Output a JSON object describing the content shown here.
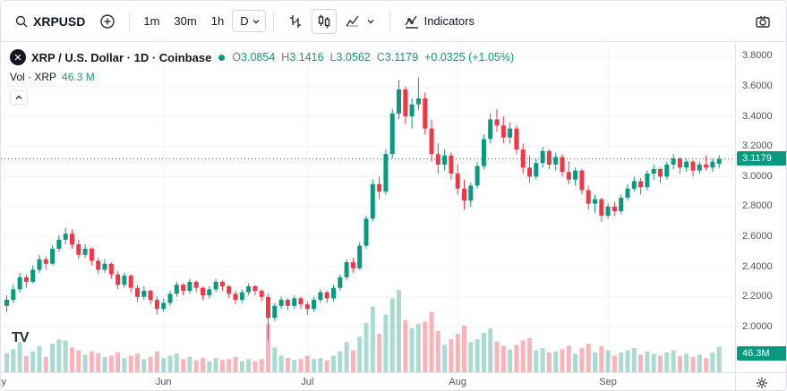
{
  "toolbar": {
    "symbol": "XRPUSD",
    "intervals": {
      "m1": "1m",
      "m30": "30m",
      "h1": "1h",
      "d1": "D"
    },
    "selected_interval": "D",
    "indicators_label": "Indicators",
    "icons": [
      "search",
      "add-circle",
      "chevron-down",
      "bars-style",
      "candles-style",
      "area-style",
      "indicators",
      "camera"
    ]
  },
  "legend": {
    "pair_title": "XRP / U.S. Dollar · 1D · Coinbase",
    "o_label": "O",
    "o_value": "3.0854",
    "h_label": "H",
    "h_value": "3.1416",
    "l_label": "L",
    "l_value": "3.0562",
    "c_label": "C",
    "c_value": "3.1179",
    "change": "+0.0325 (+1.05%)",
    "vol_label": "Vol · XRP",
    "vol_value": "46.3 M"
  },
  "axis": {
    "price_badge": "3.1179",
    "volume_badge": "46.3M"
  },
  "branding": {
    "logo_text": "TV"
  },
  "chart_data": {
    "type": "candlestick",
    "symbol": "XRPUSD",
    "timeframe": "1D",
    "exchange": "Coinbase",
    "title": "XRP / U.S. Dollar · 1D · Coinbase",
    "last_price": 3.1179,
    "last_volume_m": 46.3,
    "y_ticks": [
      3.8,
      3.6,
      3.4,
      3.2,
      3.0,
      2.8,
      2.6,
      2.4,
      2.2,
      2.0
    ],
    "y_range": [
      1.698,
      3.895
    ],
    "grid": true,
    "volume_scale_max": 155,
    "x_labels": [
      {
        "label": "May",
        "i": -1.5
      },
      {
        "label": "Jun",
        "i": 24
      },
      {
        "label": "Jul",
        "i": 46
      },
      {
        "label": "Aug",
        "i": 69
      },
      {
        "label": "Sep",
        "i": 92
      }
    ],
    "colors": {
      "up": "#089981",
      "down": "#f23645",
      "vol_up": "rgba(8,153,129,0.35)",
      "vol_down": "rgba(242,54,69,0.38)",
      "grid": "#f0f3fa",
      "last_line": "#089981"
    },
    "candles": [
      [
        2.14,
        2.21,
        2.1,
        2.18
      ],
      [
        2.18,
        2.28,
        2.16,
        2.25
      ],
      [
        2.25,
        2.36,
        2.23,
        2.33
      ],
      [
        2.33,
        2.35,
        2.26,
        2.3
      ],
      [
        2.3,
        2.41,
        2.29,
        2.38
      ],
      [
        2.38,
        2.48,
        2.36,
        2.45
      ],
      [
        2.45,
        2.47,
        2.38,
        2.42
      ],
      [
        2.42,
        2.54,
        2.41,
        2.52
      ],
      [
        2.52,
        2.61,
        2.5,
        2.58
      ],
      [
        2.58,
        2.66,
        2.55,
        2.62
      ],
      [
        2.62,
        2.65,
        2.52,
        2.55
      ],
      [
        2.55,
        2.58,
        2.45,
        2.48
      ],
      [
        2.48,
        2.55,
        2.46,
        2.52
      ],
      [
        2.52,
        2.53,
        2.41,
        2.44
      ],
      [
        2.44,
        2.46,
        2.35,
        2.38
      ],
      [
        2.38,
        2.45,
        2.36,
        2.42
      ],
      [
        2.42,
        2.43,
        2.32,
        2.35
      ],
      [
        2.35,
        2.37,
        2.25,
        2.28
      ],
      [
        2.28,
        2.36,
        2.26,
        2.34
      ],
      [
        2.34,
        2.35,
        2.23,
        2.26
      ],
      [
        2.26,
        2.28,
        2.17,
        2.2
      ],
      [
        2.2,
        2.27,
        2.18,
        2.24
      ],
      [
        2.24,
        2.25,
        2.15,
        2.18
      ],
      [
        2.18,
        2.2,
        2.08,
        2.12
      ],
      [
        2.12,
        2.19,
        2.1,
        2.16
      ],
      [
        2.16,
        2.24,
        2.14,
        2.22
      ],
      [
        2.22,
        2.3,
        2.2,
        2.28
      ],
      [
        2.28,
        2.29,
        2.21,
        2.24
      ],
      [
        2.24,
        2.32,
        2.22,
        2.3
      ],
      [
        2.3,
        2.31,
        2.23,
        2.26
      ],
      [
        2.26,
        2.27,
        2.18,
        2.21
      ],
      [
        2.21,
        2.27,
        2.19,
        2.25
      ],
      [
        2.25,
        2.32,
        2.23,
        2.3
      ],
      [
        2.3,
        2.31,
        2.24,
        2.27
      ],
      [
        2.27,
        2.28,
        2.19,
        2.22
      ],
      [
        2.22,
        2.24,
        2.15,
        2.18
      ],
      [
        2.18,
        2.25,
        2.16,
        2.23
      ],
      [
        2.23,
        2.29,
        2.21,
        2.27
      ],
      [
        2.27,
        2.28,
        2.21,
        2.24
      ],
      [
        2.24,
        2.25,
        2.17,
        2.2
      ],
      [
        2.2,
        2.22,
        1.91,
        2.06
      ],
      [
        2.06,
        2.16,
        2.04,
        2.14
      ],
      [
        2.14,
        2.2,
        2.12,
        2.18
      ],
      [
        2.18,
        2.19,
        2.11,
        2.14
      ],
      [
        2.14,
        2.21,
        2.12,
        2.19
      ],
      [
        2.19,
        2.2,
        2.12,
        2.15
      ],
      [
        2.15,
        2.17,
        2.08,
        2.12
      ],
      [
        2.12,
        2.2,
        2.1,
        2.18
      ],
      [
        2.18,
        2.25,
        2.16,
        2.23
      ],
      [
        2.23,
        2.24,
        2.16,
        2.19
      ],
      [
        2.19,
        2.28,
        2.17,
        2.26
      ],
      [
        2.26,
        2.35,
        2.24,
        2.33
      ],
      [
        2.33,
        2.45,
        2.31,
        2.43
      ],
      [
        2.43,
        2.46,
        2.36,
        2.39
      ],
      [
        2.39,
        2.56,
        2.38,
        2.54
      ],
      [
        2.54,
        2.74,
        2.52,
        2.72
      ],
      [
        2.72,
        2.98,
        2.7,
        2.95
      ],
      [
        2.95,
        3.0,
        2.85,
        2.9
      ],
      [
        2.9,
        3.18,
        2.88,
        3.15
      ],
      [
        3.15,
        3.45,
        3.12,
        3.42
      ],
      [
        3.42,
        3.64,
        3.38,
        3.58
      ],
      [
        3.58,
        3.6,
        3.35,
        3.4
      ],
      [
        3.4,
        3.52,
        3.32,
        3.48
      ],
      [
        3.48,
        3.66,
        3.44,
        3.52
      ],
      [
        3.52,
        3.56,
        3.28,
        3.32
      ],
      [
        3.32,
        3.38,
        3.1,
        3.15
      ],
      [
        3.15,
        3.22,
        3.02,
        3.08
      ],
      [
        3.08,
        3.18,
        3.04,
        3.14
      ],
      [
        3.14,
        3.16,
        2.98,
        3.02
      ],
      [
        3.02,
        3.08,
        2.88,
        2.92
      ],
      [
        2.92,
        2.98,
        2.78,
        2.84
      ],
      [
        2.84,
        2.96,
        2.8,
        2.94
      ],
      [
        2.94,
        3.1,
        2.92,
        3.07
      ],
      [
        3.07,
        3.28,
        3.05,
        3.25
      ],
      [
        3.25,
        3.42,
        3.22,
        3.38
      ],
      [
        3.38,
        3.45,
        3.3,
        3.34
      ],
      [
        3.34,
        3.4,
        3.22,
        3.26
      ],
      [
        3.26,
        3.36,
        3.22,
        3.32
      ],
      [
        3.32,
        3.34,
        3.15,
        3.18
      ],
      [
        3.18,
        3.22,
        3.02,
        3.06
      ],
      [
        3.06,
        3.14,
        2.96,
        3.0
      ],
      [
        3.0,
        3.12,
        2.98,
        3.09
      ],
      [
        3.09,
        3.2,
        3.06,
        3.17
      ],
      [
        3.17,
        3.18,
        3.05,
        3.08
      ],
      [
        3.08,
        3.16,
        3.04,
        3.13
      ],
      [
        3.13,
        3.15,
        3.0,
        3.03
      ],
      [
        3.03,
        3.1,
        2.95,
        2.98
      ],
      [
        2.98,
        3.06,
        2.94,
        3.04
      ],
      [
        3.04,
        3.05,
        2.88,
        2.91
      ],
      [
        2.91,
        2.94,
        2.78,
        2.82
      ],
      [
        2.82,
        2.88,
        2.76,
        2.85
      ],
      [
        2.85,
        2.86,
        2.7,
        2.74
      ],
      [
        2.74,
        2.82,
        2.72,
        2.8
      ],
      [
        2.8,
        2.83,
        2.74,
        2.77
      ],
      [
        2.77,
        2.88,
        2.75,
        2.86
      ],
      [
        2.86,
        2.95,
        2.84,
        2.92
      ],
      [
        2.92,
        3.0,
        2.9,
        2.97
      ],
      [
        2.97,
        2.99,
        2.88,
        2.93
      ],
      [
        2.93,
        3.04,
        2.91,
        3.02
      ],
      [
        3.02,
        3.08,
        2.98,
        3.05
      ],
      [
        3.05,
        3.06,
        2.96,
        3.0
      ],
      [
        3.0,
        3.1,
        2.98,
        3.08
      ],
      [
        3.08,
        3.15,
        3.05,
        3.12
      ],
      [
        3.12,
        3.13,
        3.02,
        3.06
      ],
      [
        3.06,
        3.12,
        3.03,
        3.1
      ],
      [
        3.1,
        3.11,
        3.0,
        3.04
      ],
      [
        3.04,
        3.1,
        3.02,
        3.08
      ],
      [
        3.08,
        3.14,
        3.04,
        3.06
      ],
      [
        3.06,
        3.12,
        3.03,
        3.1
      ],
      [
        3.0854,
        3.1416,
        3.0562,
        3.1179
      ]
    ],
    "volumes_m": [
      35,
      42,
      55,
      30,
      38,
      48,
      28,
      52,
      60,
      58,
      45,
      40,
      32,
      38,
      35,
      28,
      30,
      36,
      26,
      30,
      34,
      24,
      28,
      38,
      26,
      30,
      34,
      24,
      28,
      22,
      26,
      20,
      26,
      22,
      24,
      28,
      20,
      24,
      20,
      24,
      88,
      45,
      30,
      26,
      22,
      24,
      30,
      24,
      26,
      22,
      30,
      38,
      55,
      40,
      65,
      90,
      120,
      70,
      105,
      135,
      150,
      95,
      80,
      88,
      92,
      110,
      75,
      50,
      60,
      70,
      85,
      55,
      60,
      72,
      80,
      56,
      48,
      42,
      50,
      58,
      62,
      40,
      44,
      36,
      38,
      42,
      48,
      34,
      44,
      52,
      36,
      48,
      40,
      30,
      36,
      40,
      44,
      32,
      38,
      34,
      30,
      36,
      40,
      30,
      34,
      28,
      32,
      26,
      36,
      46.3
    ]
  }
}
